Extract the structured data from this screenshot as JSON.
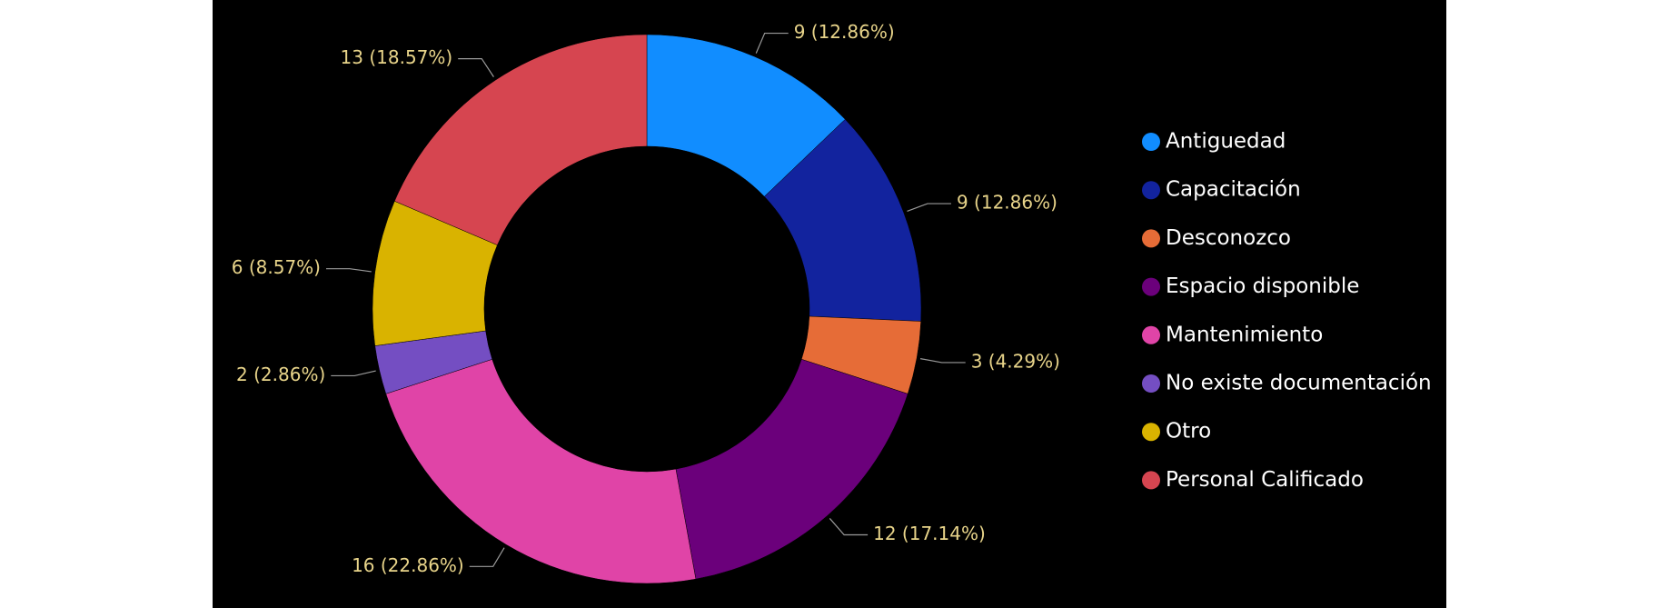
{
  "chart_data": {
    "type": "donut",
    "categories": [
      "Antiguedad",
      "Capacitación",
      "Desconozco",
      "Espacio disponible",
      "Mantenimiento",
      "No existe documentación",
      "Otro",
      "Personal Calificado"
    ],
    "values": [
      9,
      9,
      3,
      12,
      16,
      2,
      6,
      13
    ],
    "value_labels": [
      "9 (12.86%)",
      "9 (12.86%)",
      "3 (4.29%)",
      "12 (17.14%)",
      "16 (22.86%)",
      "2 (2.86%)",
      "6 (8.57%)",
      "13 (18.57%)"
    ],
    "colors": [
      "#118DFF",
      "#12239E",
      "#E66C37",
      "#6B007B",
      "#E044A7",
      "#744EC2",
      "#D9B300",
      "#D64550"
    ],
    "legend": "right"
  }
}
